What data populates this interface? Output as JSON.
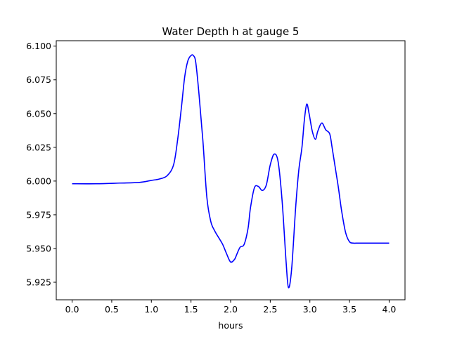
{
  "chart_data": {
    "type": "line",
    "title": "Water Depth h at gauge 5",
    "xlabel": "hours",
    "ylabel": "",
    "xlim": [
      -0.2,
      4.2
    ],
    "ylim": [
      5.912,
      6.104
    ],
    "xticks": [
      0.0,
      0.5,
      1.0,
      1.5,
      2.0,
      2.5,
      3.0,
      3.5,
      4.0
    ],
    "xtick_labels": [
      "0.0",
      "0.5",
      "1.0",
      "1.5",
      "2.0",
      "2.5",
      "3.0",
      "3.5",
      "4.0"
    ],
    "yticks": [
      5.925,
      5.95,
      5.975,
      6.0,
      6.025,
      6.05,
      6.075,
      6.1
    ],
    "ytick_labels": [
      "5.925",
      "5.950",
      "5.975",
      "6.000",
      "6.025",
      "6.050",
      "6.075",
      "6.100"
    ],
    "grid": false,
    "series": [
      {
        "color": "#0000ff",
        "x": [
          0.0,
          0.3,
          0.6,
          0.85,
          1.0,
          1.1,
          1.2,
          1.28,
          1.33,
          1.38,
          1.42,
          1.46,
          1.5,
          1.53,
          1.56,
          1.6,
          1.65,
          1.7,
          1.75,
          1.8,
          1.85,
          1.9,
          1.95,
          2.0,
          2.05,
          2.08,
          2.12,
          2.17,
          2.22,
          2.25,
          2.3,
          2.35,
          2.4,
          2.45,
          2.5,
          2.55,
          2.6,
          2.65,
          2.7,
          2.73,
          2.77,
          2.82,
          2.86,
          2.9,
          2.93,
          2.96,
          2.99,
          3.03,
          3.07,
          3.1,
          3.15,
          3.2,
          3.25,
          3.28,
          3.32,
          3.36,
          3.4,
          3.45,
          3.5,
          3.55,
          3.6,
          3.65,
          3.7,
          3.75,
          3.8,
          3.85,
          3.9,
          3.95,
          4.0
        ],
        "y": [
          5.998,
          5.998,
          5.9985,
          5.999,
          6.0005,
          6.0015,
          6.004,
          6.012,
          6.03,
          6.055,
          6.077,
          6.089,
          6.093,
          6.093,
          6.088,
          6.065,
          6.03,
          5.988,
          5.97,
          5.963,
          5.958,
          5.953,
          5.946,
          5.94,
          5.942,
          5.946,
          5.951,
          5.953,
          5.965,
          5.98,
          5.995,
          5.996,
          5.993,
          5.997,
          6.012,
          6.02,
          6.014,
          5.985,
          5.94,
          5.921,
          5.935,
          5.98,
          6.008,
          6.025,
          6.045,
          6.057,
          6.05,
          6.037,
          6.031,
          6.037,
          6.043,
          6.038,
          6.035,
          6.025,
          6.01,
          5.995,
          5.978,
          5.962,
          5.955,
          5.954,
          5.954,
          5.954,
          5.954,
          5.954,
          5.954,
          5.954,
          5.954,
          5.954,
          5.954
        ]
      }
    ]
  }
}
